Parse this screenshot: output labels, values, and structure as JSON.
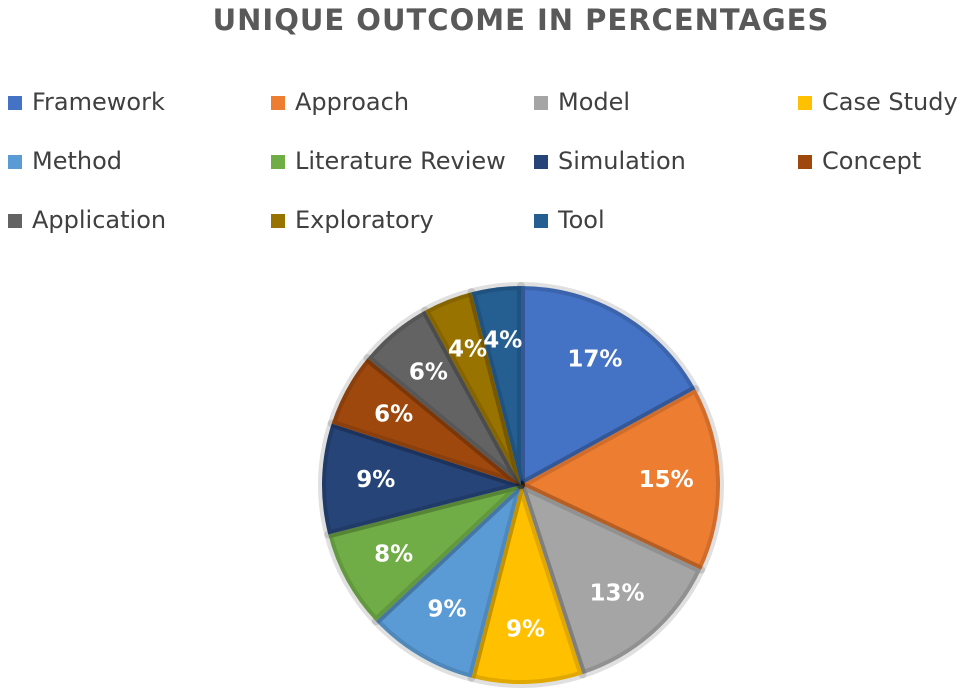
{
  "chart_data": {
    "type": "pie",
    "title": "UNIQUE OUTCOME IN PERCENTAGES",
    "categories": [
      "Framework",
      "Approach",
      "Model",
      "Case Study",
      "Method",
      "Literature Review",
      "Simulation",
      "Concept",
      "Application",
      "Exploratory",
      "Tool"
    ],
    "values": [
      17,
      15,
      13,
      9,
      9,
      8,
      9,
      6,
      6,
      4,
      4
    ],
    "value_labels": [
      "17%",
      "15%",
      "13%",
      "9%",
      "9%",
      "8%",
      "9%",
      "6%",
      "6%",
      "4%",
      "4%"
    ],
    "colors": [
      "#4472c4",
      "#ed7d31",
      "#a5a5a5",
      "#ffc000",
      "#5b9bd5",
      "#70ad47",
      "#264478",
      "#9e480e",
      "#636363",
      "#997300",
      "#255e91"
    ],
    "legend": "top"
  }
}
